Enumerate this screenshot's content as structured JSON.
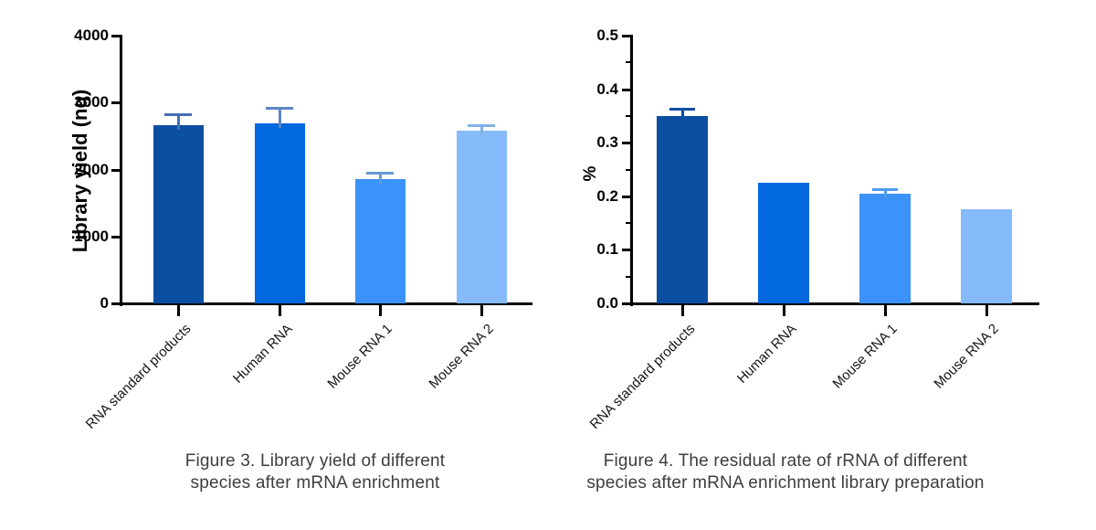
{
  "chart_data": [
    {
      "type": "bar",
      "figure_id": "Figure 3",
      "caption": [
        "Figure 3. Library yield of different",
        "species after mRNA enrichment"
      ],
      "ylabel": "Library yield (ng)",
      "xlabel": "",
      "ylim": [
        0,
        4000
      ],
      "yticks": [
        0,
        1000,
        2000,
        3000,
        4000
      ],
      "ytick_labels": [
        "0",
        "1000",
        "2000",
        "3000",
        "4000"
      ],
      "minor_ytick_step": null,
      "grid": false,
      "legend": null,
      "categories": [
        "RNA standard products",
        "Human RNA",
        "Mouse RNA 1",
        "Mouse RNA 2"
      ],
      "values": [
        2660,
        2690,
        1850,
        2580
      ],
      "errors": [
        180,
        240,
        110,
        90
      ],
      "bar_colors": [
        "#0B4EA2",
        "#0268E0",
        "#3B92F8",
        "#85BBFB"
      ],
      "error_colors": [
        "#4470B6",
        "#5E86C5",
        "#649AD4",
        "#7FB2EA"
      ],
      "axis_color": "#000000"
    },
    {
      "type": "bar",
      "figure_id": "Figure 4",
      "caption": [
        "Figure 4. The residual rate of rRNA of different",
        "species after mRNA enrichment library preparation"
      ],
      "ylabel": "%",
      "xlabel": "",
      "ylim": [
        0,
        0.5
      ],
      "yticks": [
        0.0,
        0.1,
        0.2,
        0.3,
        0.4,
        0.5
      ],
      "ytick_labels": [
        "0.0",
        "0.1",
        "0.2",
        "0.3",
        "0.4",
        "0.5"
      ],
      "minor_ytick_step": 0.05,
      "grid": false,
      "legend": null,
      "categories": [
        "RNA standard products",
        "Human RNA",
        "Mouse RNA 1",
        "Mouse RNA 2"
      ],
      "values": [
        0.35,
        0.225,
        0.205,
        0.175
      ],
      "errors": [
        0.015,
        0,
        0.01,
        0
      ],
      "bar_colors": [
        "#0B4EA2",
        "#0268E0",
        "#3B92F8",
        "#85BBFB"
      ],
      "error_colors": [
        "#0B4EA2",
        null,
        "#4C9EF5",
        null
      ],
      "axis_color": "#000000"
    }
  ]
}
